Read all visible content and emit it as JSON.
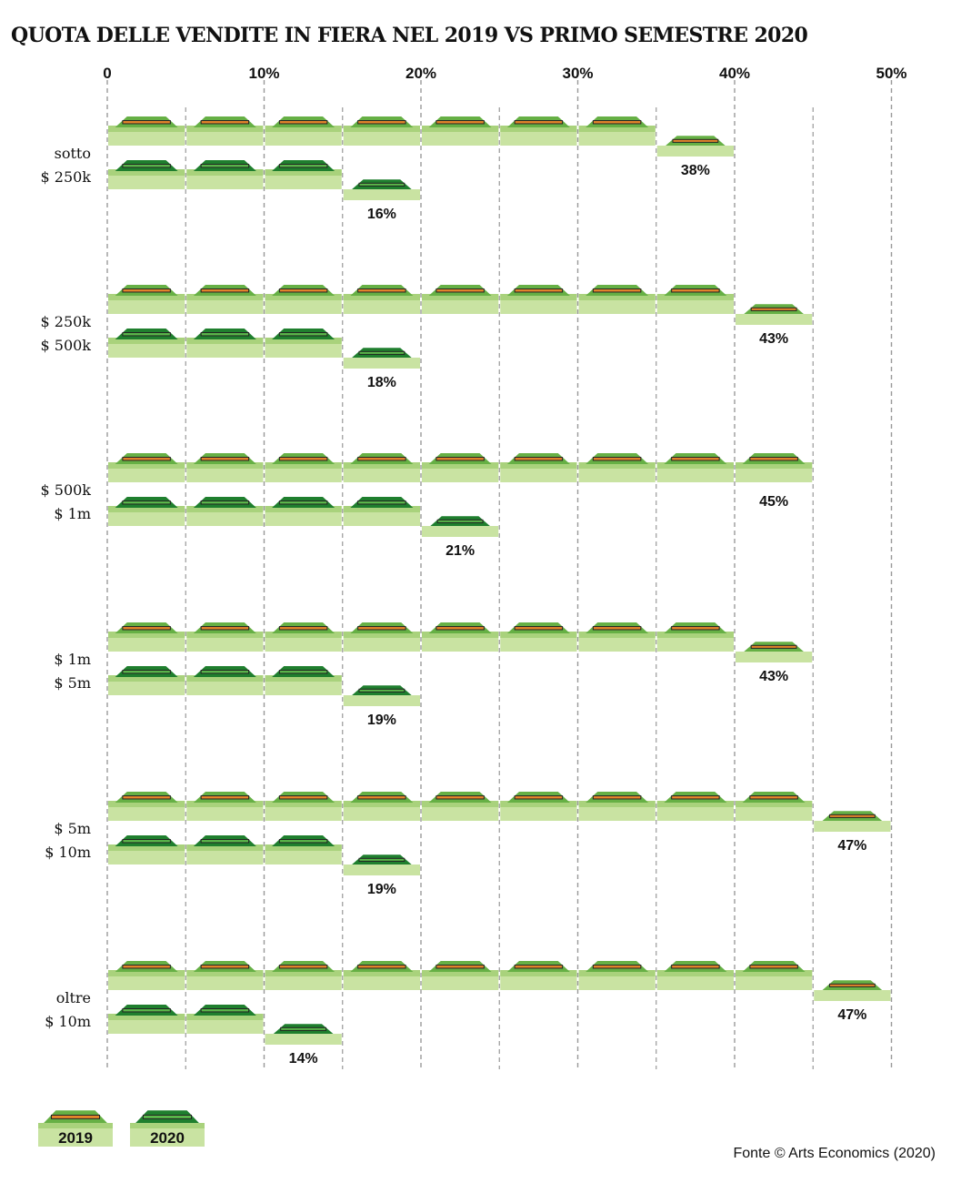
{
  "chart_data": {
    "type": "bar",
    "title": "QUOTA DELLE VENDITE IN FIERA NEL 2019 VS PRIMO SEMESTRE 2020",
    "x_ticks": [
      "0",
      "10%",
      "20%",
      "30%",
      "40%",
      "50%"
    ],
    "xlim": [
      0,
      50
    ],
    "grid": true,
    "categories": [
      [
        "sotto",
        "$ 250k"
      ],
      [
        "$ 250k",
        "$ 500k"
      ],
      [
        "$ 500k",
        "$ 1m"
      ],
      [
        "$ 1m",
        "$ 5m"
      ],
      [
        "$ 5m",
        "$ 10m"
      ],
      [
        "oltre",
        "$ 10m"
      ]
    ],
    "series": [
      {
        "name": "2019",
        "values": [
          38,
          43,
          45,
          43,
          47,
          47
        ],
        "labels": [
          "38%",
          "43%",
          "45%",
          "43%",
          "47%",
          "47%"
        ]
      },
      {
        "name": "2020",
        "values": [
          16,
          18,
          21,
          19,
          19,
          14
        ],
        "labels": [
          "16%",
          "18%",
          "21%",
          "19%",
          "19%",
          "14%"
        ]
      }
    ],
    "legend": {
      "position": "bottom-left",
      "items": [
        "2019",
        "2020"
      ]
    }
  },
  "source": "Fonte © Arts Economics (2020)",
  "colors": {
    "bar_light": "#c9e3a2",
    "bar_mid": "#a9d27c",
    "tent_2019": "#66b045",
    "stripe_2019": "#e5852b",
    "tent_2020": "#1f7f2e",
    "stripe_2020": "#5ab84a",
    "grid": "#999999"
  }
}
